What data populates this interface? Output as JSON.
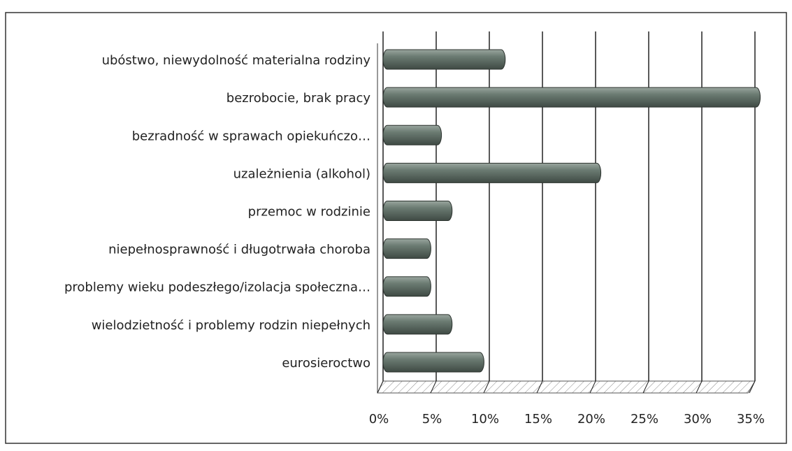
{
  "chart_data": {
    "type": "bar",
    "orientation": "horizontal",
    "categories": [
      "ubóstwo, niewydolność materialna rodziny",
      "bezrobocie, brak pracy",
      "bezradność w sprawach opiekuńczo…",
      "uzależnienia (alkohol)",
      "przemoc w rodzinie",
      "niepełnosprawność i długotrwała choroba",
      "problemy wieku podeszłego/izolacja społeczna…",
      "wielodzietność i problemy rodzin niepełnych",
      "eurosieroctwo"
    ],
    "values": [
      11.5,
      35.5,
      5.5,
      20.5,
      6.5,
      4.5,
      4.5,
      6.5,
      9.5
    ],
    "color": "#6b7b72",
    "xlim": [
      0,
      35
    ],
    "xticks": [
      {
        "value": 0,
        "label": "0%"
      },
      {
        "value": 5,
        "label": "5%"
      },
      {
        "value": 10,
        "label": "10%"
      },
      {
        "value": 15,
        "label": "15%"
      },
      {
        "value": 20,
        "label": "20%"
      },
      {
        "value": 25,
        "label": "25%"
      },
      {
        "value": 30,
        "label": "30%"
      },
      {
        "value": 35,
        "label": "35%"
      }
    ],
    "grid": true
  }
}
